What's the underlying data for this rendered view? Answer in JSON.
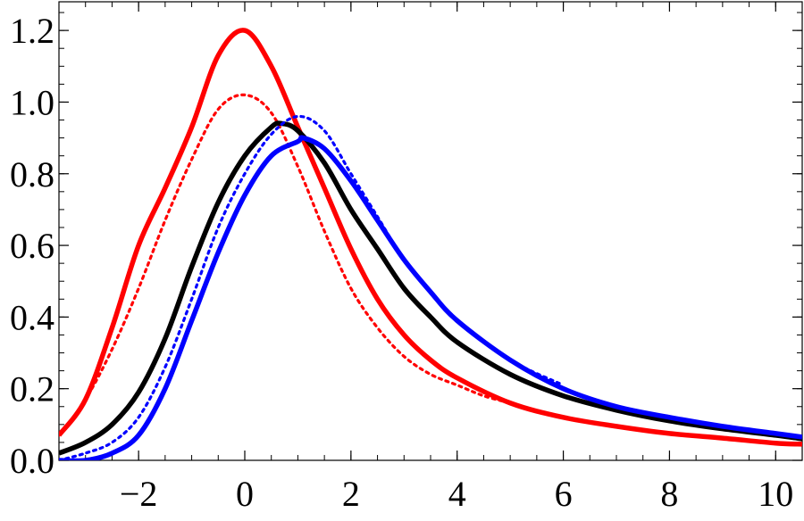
{
  "chart_data": {
    "type": "line",
    "title": "",
    "xlabel": "",
    "ylabel": "",
    "xlim": [
      -3.5,
      10.5
    ],
    "ylim": [
      0,
      1.28
    ],
    "grid": false,
    "legend": "none",
    "x_ticks": [
      {
        "value": -2,
        "label": "−2"
      },
      {
        "value": 0,
        "label": "0"
      },
      {
        "value": 2,
        "label": "2"
      },
      {
        "value": 4,
        "label": "4"
      },
      {
        "value": 6,
        "label": "6"
      },
      {
        "value": 8,
        "label": "8"
      },
      {
        "value": 10,
        "label": "10"
      }
    ],
    "y_ticks": [
      {
        "value": 0.0,
        "label": "0.0"
      },
      {
        "value": 0.2,
        "label": "0.2"
      },
      {
        "value": 0.4,
        "label": "0.4"
      },
      {
        "value": 0.6,
        "label": "0.6"
      },
      {
        "value": 0.8,
        "label": "0.8"
      },
      {
        "value": 1.0,
        "label": "1.0"
      },
      {
        "value": 1.2,
        "label": "1.2"
      }
    ],
    "series": [
      {
        "color": "#ff0000",
        "style": "solid",
        "x": [
          -3.5,
          -3,
          -2.5,
          -2,
          -1.5,
          -1,
          -0.5,
          0,
          0.5,
          1,
          1.5,
          2,
          2.5,
          3,
          3.5,
          4,
          5,
          6,
          7,
          8,
          9,
          10,
          10.5
        ],
        "y": [
          0.07,
          0.17,
          0.37,
          0.6,
          0.76,
          0.93,
          1.13,
          1.2,
          1.1,
          0.93,
          0.76,
          0.59,
          0.45,
          0.35,
          0.28,
          0.23,
          0.16,
          0.12,
          0.095,
          0.075,
          0.062,
          0.048,
          0.045
        ]
      },
      {
        "color": "#ff0000",
        "style": "dotted",
        "x": [
          -3.5,
          -3,
          -2.5,
          -2,
          -1.5,
          -1,
          -0.5,
          0,
          0.5,
          1,
          1.5,
          2,
          2.5,
          3,
          3.5,
          4,
          4.5,
          5
        ],
        "y": [
          0.07,
          0.17,
          0.31,
          0.48,
          0.67,
          0.84,
          0.98,
          1.02,
          0.97,
          0.82,
          0.64,
          0.48,
          0.37,
          0.29,
          0.24,
          0.21,
          0.18,
          0.16
        ]
      },
      {
        "color": "#000000",
        "style": "solid",
        "x": [
          -3.5,
          -3,
          -2.5,
          -2,
          -1.5,
          -1,
          -0.5,
          0,
          0.5,
          0.7,
          1,
          1.5,
          2,
          2.5,
          3,
          3.5,
          4,
          5,
          6,
          7,
          8,
          9,
          10,
          10.5
        ],
        "y": [
          0.02,
          0.05,
          0.1,
          0.19,
          0.34,
          0.54,
          0.72,
          0.85,
          0.93,
          0.94,
          0.92,
          0.83,
          0.7,
          0.59,
          0.48,
          0.4,
          0.33,
          0.24,
          0.18,
          0.14,
          0.11,
          0.088,
          0.07,
          0.06
        ]
      },
      {
        "color": "#0000ff",
        "style": "dotted",
        "x": [
          -3.5,
          -3,
          -2.5,
          -2,
          -1.5,
          -1,
          -0.5,
          0,
          0.5,
          1,
          1.5,
          2,
          2.5,
          3,
          3.5,
          4,
          5,
          6
        ],
        "y": [
          0.0,
          0.02,
          0.05,
          0.12,
          0.26,
          0.45,
          0.65,
          0.8,
          0.91,
          0.96,
          0.92,
          0.8,
          0.68,
          0.56,
          0.47,
          0.39,
          0.28,
          0.21
        ]
      },
      {
        "color": "#0000ff",
        "style": "solid",
        "x": [
          -3.5,
          -3,
          -2.5,
          -2,
          -1.5,
          -1,
          -0.5,
          0,
          0.5,
          1,
          1.1,
          1.5,
          2,
          2.5,
          3,
          3.5,
          4,
          5,
          6,
          7,
          8,
          9,
          10,
          10.5
        ],
        "y": [
          0.0,
          0.0,
          0.02,
          0.07,
          0.2,
          0.39,
          0.58,
          0.74,
          0.85,
          0.89,
          0.9,
          0.87,
          0.78,
          0.67,
          0.56,
          0.47,
          0.39,
          0.28,
          0.2,
          0.15,
          0.12,
          0.095,
          0.075,
          0.065
        ]
      }
    ]
  }
}
